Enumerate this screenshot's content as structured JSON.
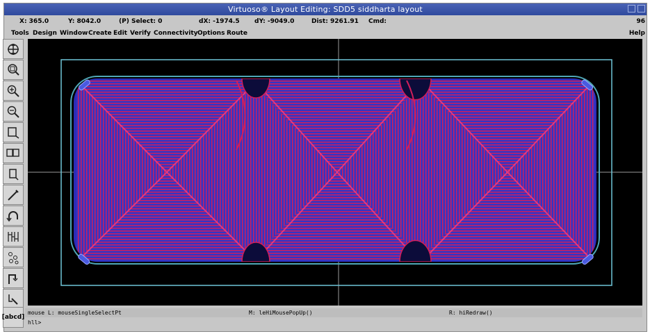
{
  "window": {
    "title": "Virtuoso® Layout Editing: SDD5 siddharta layout"
  },
  "status": {
    "x": "X: 365.0",
    "y": "Y: 8042.0",
    "select": "(P) Select: 0",
    "dx": "dX: -1974.5",
    "dy": "dY: -9049.0",
    "dist": "Dist: 9261.91",
    "cmd": "Cmd:",
    "right": "96"
  },
  "menus": [
    "Tools",
    "Design",
    "Window",
    "Create",
    "Edit",
    "Verify",
    "Connectivity",
    "Options",
    "Route"
  ],
  "help_label": "Help",
  "toolbar": [
    {
      "icon": "pan-icon"
    },
    {
      "icon": "zoom-fit-icon"
    },
    {
      "icon": "zoom-in-icon"
    },
    {
      "icon": "zoom-out-icon"
    },
    {
      "icon": "rectangle-icon"
    },
    {
      "icon": "copy-icon"
    },
    {
      "icon": "stretch-icon"
    },
    {
      "icon": "path-icon"
    },
    {
      "icon": "undo-icon"
    },
    {
      "icon": "ruler-icon"
    },
    {
      "icon": "instance-icon"
    },
    {
      "icon": "route-icon"
    },
    {
      "icon": "select-icon"
    }
  ],
  "command_button": "[abcd]",
  "mouse": {
    "left": "mouse L: mouseSingleSelectPt",
    "middle": "M: leHiMousePopUp()",
    "right": "R: hiRedraw()"
  },
  "prompt": "hll>",
  "colors": {
    "metal_red": "#e0245a",
    "metal_blue": "#3a3ad0",
    "boundary": "#7fd0e0",
    "canvas_bg": "#000000",
    "title_bg": "#3550a6"
  }
}
